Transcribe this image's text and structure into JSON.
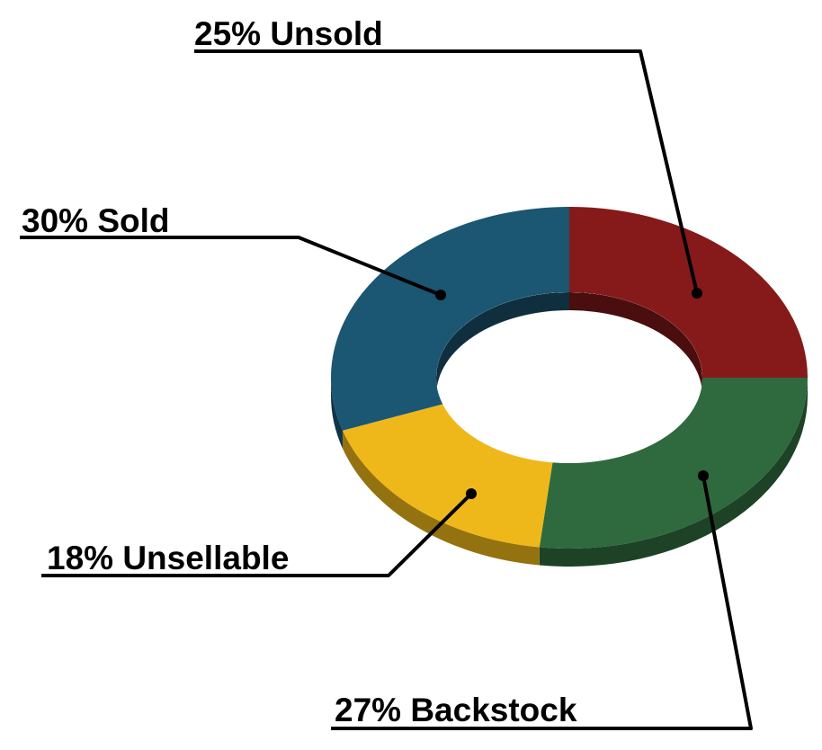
{
  "chart_data": {
    "type": "pie",
    "variant": "donut-3d",
    "title": "",
    "slices": [
      {
        "label": "Unsold",
        "value": 25,
        "text": "25% Unsold",
        "color": "#861a1a"
      },
      {
        "label": "Backstock",
        "value": 27,
        "text": "27% Backstock",
        "color": "#2e6a3e"
      },
      {
        "label": "Unsellable",
        "value": 18,
        "text": "18% Unsellable",
        "color": "#efb81a"
      },
      {
        "label": "Sold",
        "value": 30,
        "text": "30% Sold",
        "color": "#1b5672"
      }
    ],
    "legend": "none",
    "grid": false
  }
}
